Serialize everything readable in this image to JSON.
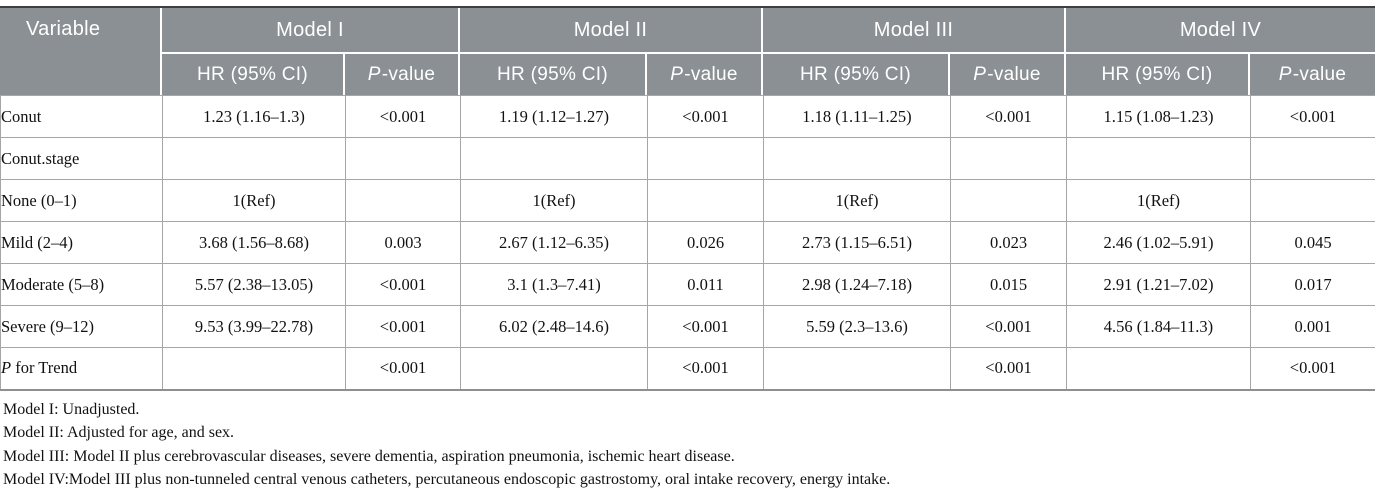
{
  "colors": {
    "header_bg": "#8a9094",
    "header_text": "#ffffff",
    "body_border": "#a6a6a6",
    "body_text": "#111111"
  },
  "table": {
    "header": {
      "variable_label": "Variable",
      "models": [
        "Model I",
        "Model II",
        "Model III",
        "Model IV"
      ],
      "hr_label": "HR (95% CI)",
      "p_italic": "P",
      "p_rest": "-value"
    },
    "rows": [
      {
        "label": "Conut",
        "cells": [
          "1.23 (1.16–1.3)",
          "<0.001",
          "1.19 (1.12–1.27)",
          "<0.001",
          "1.18 (1.11–1.25)",
          "<0.001",
          "1.15 (1.08–1.23)",
          "<0.001"
        ]
      },
      {
        "label": "Conut.stage",
        "cells": [
          "",
          "",
          "",
          "",
          "",
          "",
          "",
          ""
        ]
      },
      {
        "label": "None (0–1)",
        "cells": [
          "1(Ref)",
          "",
          "1(Ref)",
          "",
          "1(Ref)",
          "",
          "1(Ref)",
          ""
        ]
      },
      {
        "label": "Mild (2–4)",
        "cells": [
          "3.68 (1.56–8.68)",
          "0.003",
          "2.67 (1.12–6.35)",
          "0.026",
          "2.73 (1.15–6.51)",
          "0.023",
          "2.46 (1.02–5.91)",
          "0.045"
        ]
      },
      {
        "label": "Moderate (5–8)",
        "cells": [
          "5.57 (2.38–13.05)",
          "<0.001",
          "3.1 (1.3–7.41)",
          "0.011",
          "2.98 (1.24–7.18)",
          "0.015",
          "2.91 (1.21–7.02)",
          "0.017"
        ]
      },
      {
        "label": "Severe (9–12)",
        "cells": [
          "9.53 (3.99–22.78)",
          "<0.001",
          "6.02 (2.48–14.6)",
          "<0.001",
          "5.59 (2.3–13.6)",
          "<0.001",
          "4.56 (1.84–11.3)",
          "0.001"
        ]
      },
      {
        "label_italic": "P",
        "label": " for Trend",
        "cells": [
          "",
          "<0.001",
          "",
          "<0.001",
          "",
          "<0.001",
          "",
          "<0.001"
        ]
      }
    ],
    "footnotes": [
      "Model I: Unadjusted.",
      "Model II: Adjusted for age, and sex.",
      "Model III: Model II plus cerebrovascular diseases, severe dementia, aspiration pneumonia, ischemic heart disease.",
      "Model IV:Model III plus non-tunneled central venous catheters, percutaneous endoscopic gastrostomy, oral intake recovery, energy intake."
    ]
  }
}
